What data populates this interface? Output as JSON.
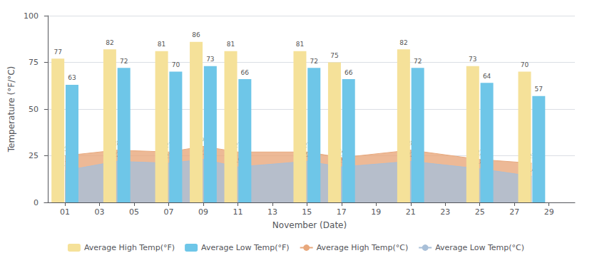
{
  "chart_data": {
    "type": "bar",
    "xlabel": "November (Date)",
    "ylabel": "Temperature (°F/°C)",
    "x": [
      1,
      4,
      7,
      9,
      11,
      15,
      17,
      21,
      25,
      28
    ],
    "series": [
      {
        "name": "Average High Temp(°F)",
        "type": "bar",
        "color": "#F5E199",
        "values": [
          77,
          82,
          81,
          86,
          81,
          81,
          75,
          82,
          73,
          70
        ]
      },
      {
        "name": "Average Low Temp(°F)",
        "type": "bar",
        "color": "#6EC6E8",
        "values": [
          63,
          72,
          70,
          73,
          66,
          72,
          66,
          72,
          64,
          57
        ]
      },
      {
        "name": "Average High Temp(°C)",
        "type": "area",
        "color": "#E8A87C",
        "values": [
          25,
          28,
          27,
          30,
          27,
          27,
          24,
          28,
          23,
          21
        ]
      },
      {
        "name": "Average Low Temp(°C)",
        "type": "area",
        "color": "#A8BFD8",
        "values": [
          17,
          22,
          21,
          23,
          19,
          22,
          19,
          22,
          18,
          14
        ]
      }
    ],
    "xlim": [
      -0.2,
      30.5
    ],
    "xticks": [
      {
        "value": 1,
        "label": "01"
      },
      {
        "value": 3,
        "label": "03"
      },
      {
        "value": 5,
        "label": "05"
      },
      {
        "value": 7,
        "label": "07"
      },
      {
        "value": 9,
        "label": "09"
      },
      {
        "value": 11,
        "label": "11"
      },
      {
        "value": 13,
        "label": "13"
      },
      {
        "value": 15,
        "label": "15"
      },
      {
        "value": 17,
        "label": "17"
      },
      {
        "value": 19,
        "label": "19"
      },
      {
        "value": 21,
        "label": "21"
      },
      {
        "value": 23,
        "label": "23"
      },
      {
        "value": 25,
        "label": "25"
      },
      {
        "value": 27,
        "label": "27"
      },
      {
        "value": 29,
        "label": "29"
      }
    ],
    "ylim": [
      0,
      100
    ],
    "yticks": [
      0,
      25,
      50,
      75,
      100
    ],
    "grid": true,
    "legend": "bottom",
    "data_labels": true
  }
}
